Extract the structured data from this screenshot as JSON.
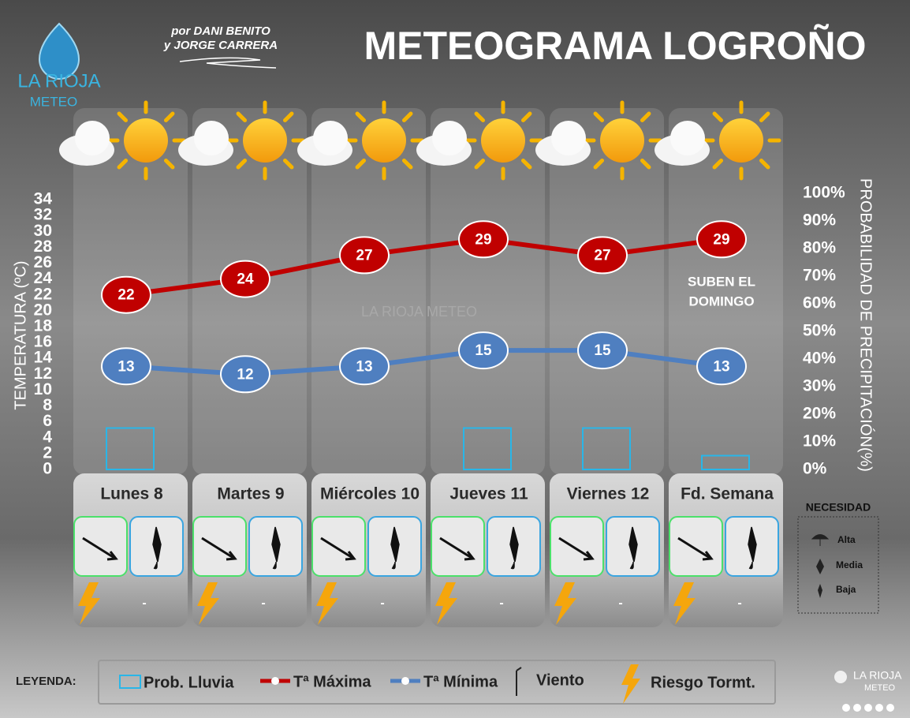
{
  "chart_data": {
    "type": "line",
    "title": "METEOGRAMA LOGROÑO",
    "byline": [
      "por DANI BENITO",
      "y JORGE CARRERA"
    ],
    "brand": {
      "name": "LA RIOJA",
      "sub": "METEO"
    },
    "watermark": "LA RIOJA METEO",
    "categories": [
      "Lunes 8",
      "Martes 9",
      "Miércoles 10",
      "Jueves 11",
      "Viernes 12",
      "Fd. Semana"
    ],
    "series": [
      {
        "name": "Tª Máxima",
        "color": "#c00000",
        "type": "line",
        "values": [
          22,
          24,
          27,
          29,
          27,
          29
        ]
      },
      {
        "name": "Tª Mínima",
        "color": "#4f7fc0",
        "type": "line",
        "values": [
          13,
          12,
          13,
          15,
          15,
          13
        ]
      },
      {
        "name": "Prob. Lluvia",
        "color": "#29b6e8",
        "type": "bar",
        "axis": "y2",
        "values": [
          15,
          0,
          0,
          15,
          15,
          5
        ]
      }
    ],
    "ylabel": "TEMPERATURA (ºC)",
    "ylim": [
      0,
      34
    ],
    "yticks": [
      0,
      2,
      4,
      6,
      8,
      10,
      12,
      14,
      16,
      18,
      20,
      22,
      24,
      26,
      28,
      30,
      32,
      34
    ],
    "y2label": "PROBABILIDAD DE PRECIPITACIÓN(%)",
    "y2lim": [
      0,
      100
    ],
    "y2ticks": [
      {
        "value": 0,
        "label": "0%"
      },
      {
        "value": 10,
        "label": "10%"
      },
      {
        "value": 20,
        "label": "20%"
      },
      {
        "value": 30,
        "label": "30%"
      },
      {
        "value": 40,
        "label": "40%"
      },
      {
        "value": 50,
        "label": "50%"
      },
      {
        "value": 60,
        "label": "60%"
      },
      {
        "value": 70,
        "label": "70%"
      },
      {
        "value": 80,
        "label": "80%"
      },
      {
        "value": 90,
        "label": "90%"
      },
      {
        "value": 100,
        "label": "100%"
      }
    ],
    "grid": false,
    "annotation": [
      "SUBEN EL",
      "DOMINGO"
    ],
    "storm_risk": [
      "-",
      "-",
      "-",
      "-",
      "-",
      "-"
    ],
    "necesidad": {
      "title": "NECESIDAD",
      "levels": [
        "Alta",
        "Media",
        "Baja"
      ]
    },
    "legend": {
      "title": "LEYENDA:",
      "wind": "Viento",
      "storm": "Riesgo Tormt."
    },
    "footer_brand": {
      "name": "LA RIOJA",
      "sub": "METEO"
    }
  }
}
